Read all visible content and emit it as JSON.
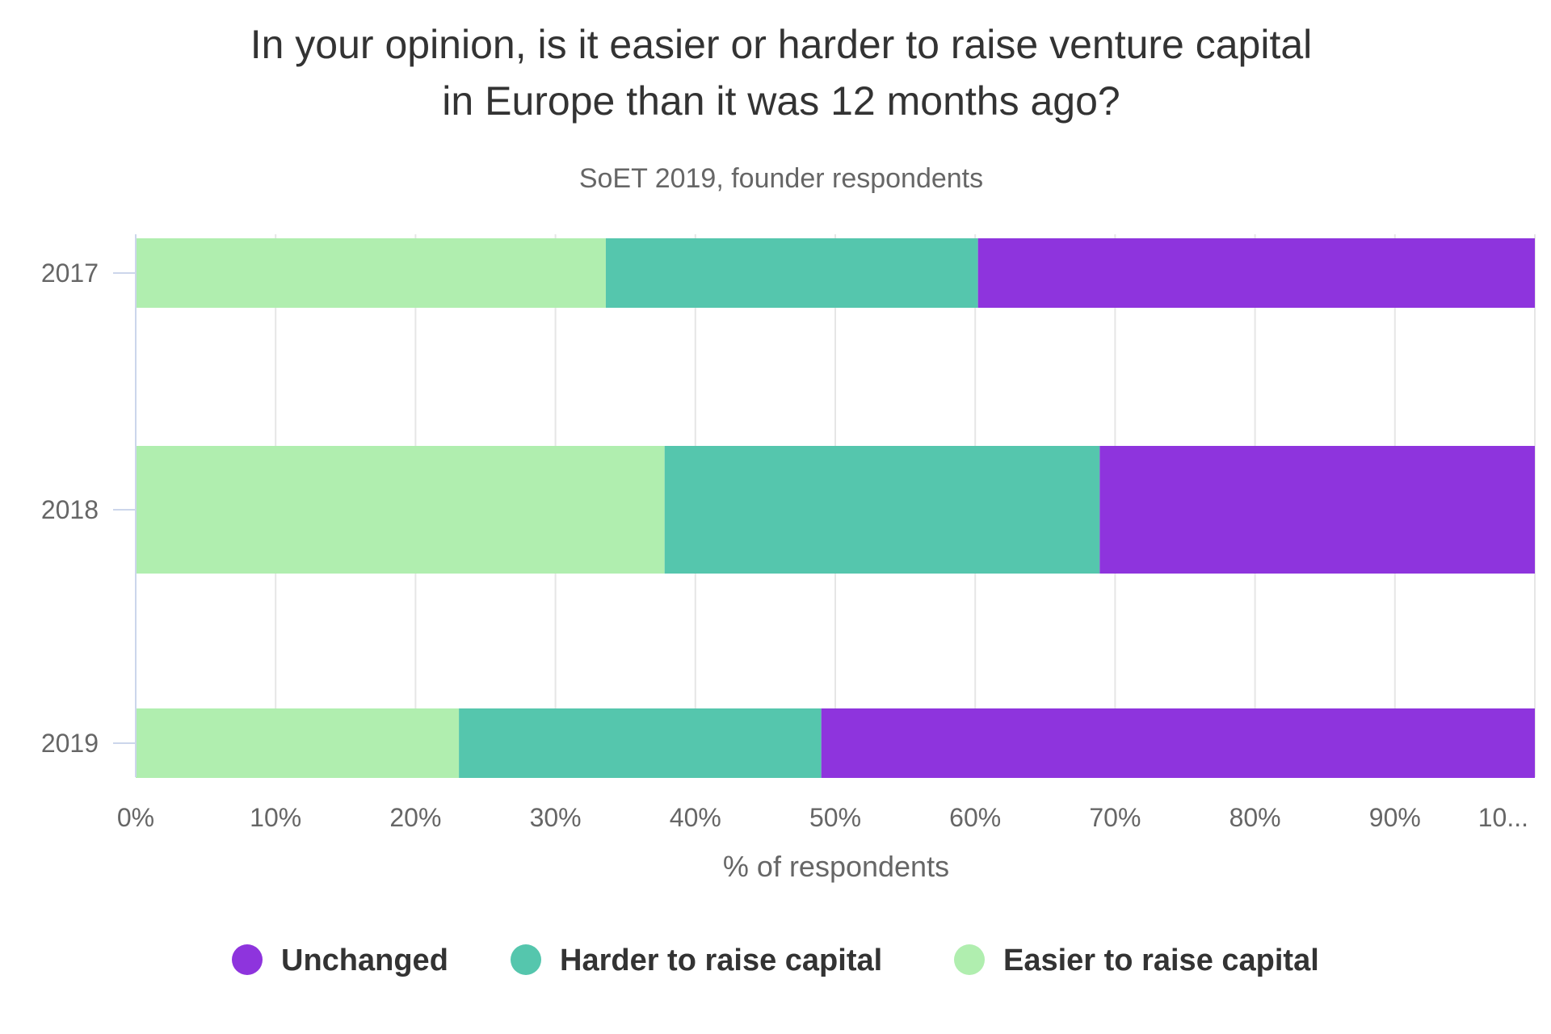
{
  "chart_data": {
    "type": "bar",
    "orientation": "horizontal",
    "stacking": "percent",
    "title": "In your opinion, is it easier or harder to raise venture capital in Europe than it was 12 months ago?",
    "subtitle": "SoET 2019, founder respondents",
    "categories": [
      "2017",
      "2018",
      "2019"
    ],
    "series": [
      {
        "name": "Easier to raise capital",
        "color": "#b0eeaf",
        "values": [
          33.6,
          37.8,
          23.1
        ]
      },
      {
        "name": "Harder to raise capital",
        "color": "#55c6ad",
        "values": [
          26.6,
          31.1,
          25.9
        ]
      },
      {
        "name": "Unchanged",
        "color": "#8e34dd",
        "values": [
          39.8,
          31.1,
          51.0
        ]
      }
    ],
    "legend_order": [
      "Unchanged",
      "Harder to raise capital",
      "Easier to raise capital"
    ],
    "xlabel": "% of respondents",
    "ylabel": "",
    "xlim": [
      0,
      100
    ],
    "x_ticks": [
      "0%",
      "10%",
      "20%",
      "30%",
      "40%",
      "50%",
      "60%",
      "70%",
      "80%",
      "90%",
      "10..."
    ],
    "grid": true,
    "legend_position": "bottom"
  }
}
